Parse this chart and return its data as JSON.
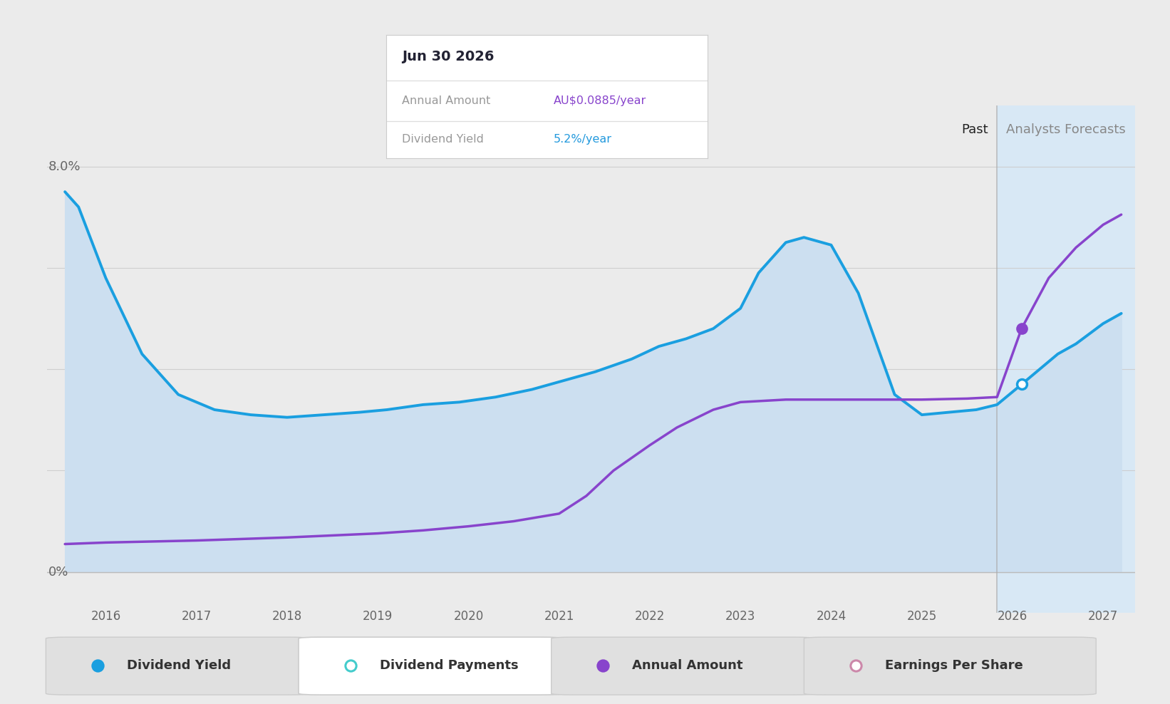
{
  "background_color": "#ebebeb",
  "plot_bg_color": "#ebebeb",
  "forecast_bg_color": "#d8e8f5",
  "past_plot_fill_color": "#ccdff0",
  "title_text": "Jun 30 2026",
  "tooltip_annual_label": "Annual Amount",
  "tooltip_annual_value": "AU$0.0885/year",
  "tooltip_yield_label": "Dividend Yield",
  "tooltip_yield_value": "5.2%/year",
  "tooltip_annual_color": "#8844cc",
  "tooltip_yield_color": "#2299dd",
  "past_label": "Past",
  "forecast_label": "Analysts Forecasts",
  "x_ticks": [
    2016,
    2017,
    2018,
    2019,
    2020,
    2021,
    2022,
    2023,
    2024,
    2025,
    2026,
    2027
  ],
  "forecast_start_x": 2025.83,
  "div_yield_color": "#1a9fe0",
  "annual_amount_color": "#8844cc",
  "div_yield_x": [
    2015.55,
    2015.7,
    2016.0,
    2016.4,
    2016.8,
    2017.2,
    2017.6,
    2018.0,
    2018.4,
    2018.8,
    2019.1,
    2019.5,
    2019.9,
    2020.3,
    2020.7,
    2021.0,
    2021.4,
    2021.8,
    2022.1,
    2022.4,
    2022.7,
    2023.0,
    2023.2,
    2023.5,
    2023.7,
    2024.0,
    2024.3,
    2024.5,
    2024.7,
    2025.0,
    2025.3,
    2025.6,
    2025.83,
    2026.1,
    2026.3,
    2026.5,
    2026.7,
    2027.0,
    2027.2
  ],
  "div_yield_y": [
    7.5,
    7.2,
    5.8,
    4.3,
    3.5,
    3.2,
    3.1,
    3.05,
    3.1,
    3.15,
    3.2,
    3.3,
    3.35,
    3.45,
    3.6,
    3.75,
    3.95,
    4.2,
    4.45,
    4.6,
    4.8,
    5.2,
    5.9,
    6.5,
    6.6,
    6.45,
    5.5,
    4.5,
    3.5,
    3.1,
    3.15,
    3.2,
    3.3,
    3.7,
    4.0,
    4.3,
    4.5,
    4.9,
    5.1
  ],
  "annual_amount_x": [
    2015.55,
    2016.0,
    2016.5,
    2017.0,
    2017.5,
    2018.0,
    2018.5,
    2019.0,
    2019.5,
    2020.0,
    2020.5,
    2021.0,
    2021.3,
    2021.6,
    2022.0,
    2022.3,
    2022.7,
    2023.0,
    2023.5,
    2024.0,
    2024.5,
    2025.0,
    2025.5,
    2025.83,
    2026.1,
    2026.4,
    2026.7,
    2027.0,
    2027.2
  ],
  "annual_amount_y": [
    0.55,
    0.58,
    0.6,
    0.62,
    0.65,
    0.68,
    0.72,
    0.76,
    0.82,
    0.9,
    1.0,
    1.15,
    1.5,
    2.0,
    2.5,
    2.85,
    3.2,
    3.35,
    3.4,
    3.4,
    3.4,
    3.4,
    3.42,
    3.45,
    4.8,
    5.8,
    6.4,
    6.85,
    7.05
  ],
  "marker_point_x": 2026.1,
  "marker_dy_y": 3.7,
  "marker_aa_y": 4.8,
  "ylim_min": -0.8,
  "ylim_max": 9.2,
  "legend_items": [
    {
      "label": "Dividend Yield",
      "color": "#1a9fe0",
      "filled": true
    },
    {
      "label": "Dividend Payments",
      "color": "#44cccc",
      "filled": false
    },
    {
      "label": "Annual Amount",
      "color": "#8844cc",
      "filled": true
    },
    {
      "label": "Earnings Per Share",
      "color": "#cc88aa",
      "filled": false
    }
  ]
}
